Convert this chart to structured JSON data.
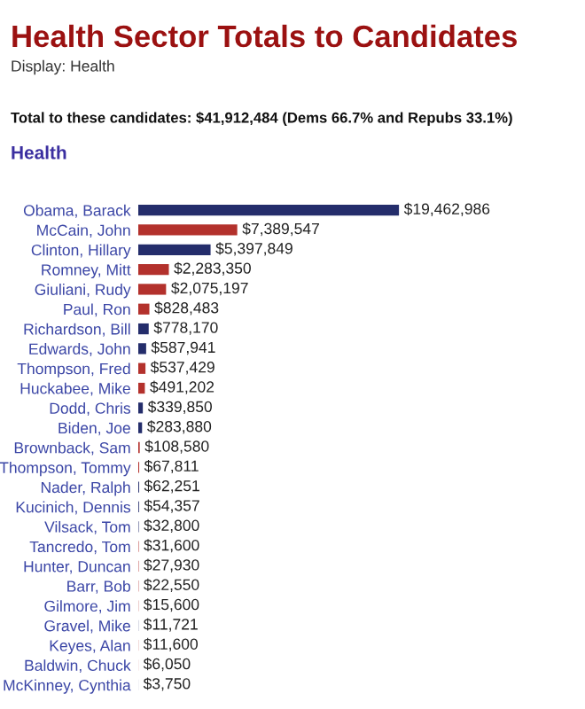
{
  "chart_data": {
    "type": "bar",
    "orientation": "horizontal",
    "title": "Health Sector Totals to Candidates",
    "annotations": [
      "Display: Health",
      "Total to these candidates: $41,912,484 (Dems 66.7% and Repubs 33.1%)",
      "Health"
    ],
    "categories": [
      "Obama, Barack",
      "McCain, John",
      "Clinton, Hillary",
      "Romney, Mitt",
      "Giuliani, Rudy",
      "Paul, Ron",
      "Richardson, Bill",
      "Edwards, John",
      "Thompson, Fred",
      "Huckabee, Mike",
      "Dodd, Chris",
      "Biden, Joe",
      "Brownback, Sam",
      "Thompson, Tommy",
      "Nader, Ralph",
      "Kucinich, Dennis",
      "Vilsack, Tom",
      "Tancredo, Tom",
      "Hunter, Duncan",
      "Barr, Bob",
      "Gilmore, Jim",
      "Gravel, Mike",
      "Keyes, Alan",
      "Baldwin, Chuck",
      "McKinney, Cynthia"
    ],
    "values": [
      19462986,
      7389547,
      5397849,
      2283350,
      2075197,
      828483,
      778170,
      587941,
      537429,
      491202,
      339850,
      283880,
      108580,
      67811,
      62251,
      54357,
      32800,
      31600,
      27930,
      22550,
      15600,
      11721,
      11600,
      6050,
      3750
    ],
    "colors": [
      "#242d6b",
      "#b3312c",
      "#242d6b",
      "#b3312c",
      "#b3312c",
      "#b3312c",
      "#242d6b",
      "#242d6b",
      "#b3312c",
      "#b3312c",
      "#242d6b",
      "#242d6b",
      "#b3312c",
      "#b3312c",
      "#242d6b",
      "#242d6b",
      "#242d6b",
      "#b3312c",
      "#b3312c",
      "#b3312c",
      "#b3312c",
      "#242d6b",
      "#b3312c",
      "#b3312c",
      "#242d6b"
    ],
    "value_labels": [
      "$19,462,986",
      "$7,389,547",
      "$5,397,849",
      "$2,283,350",
      "$2,075,197",
      "$828,483",
      "$778,170",
      "$587,941",
      "$537,429",
      "$491,202",
      "$339,850",
      "$283,880",
      "$108,580",
      "$67,811",
      "$62,251",
      "$54,357",
      "$32,800",
      "$31,600",
      "$27,930",
      "$22,550",
      "$15,600",
      "$11,721",
      "$11,600",
      "$6,050",
      "$3,750"
    ],
    "grid": false,
    "legend": false
  }
}
